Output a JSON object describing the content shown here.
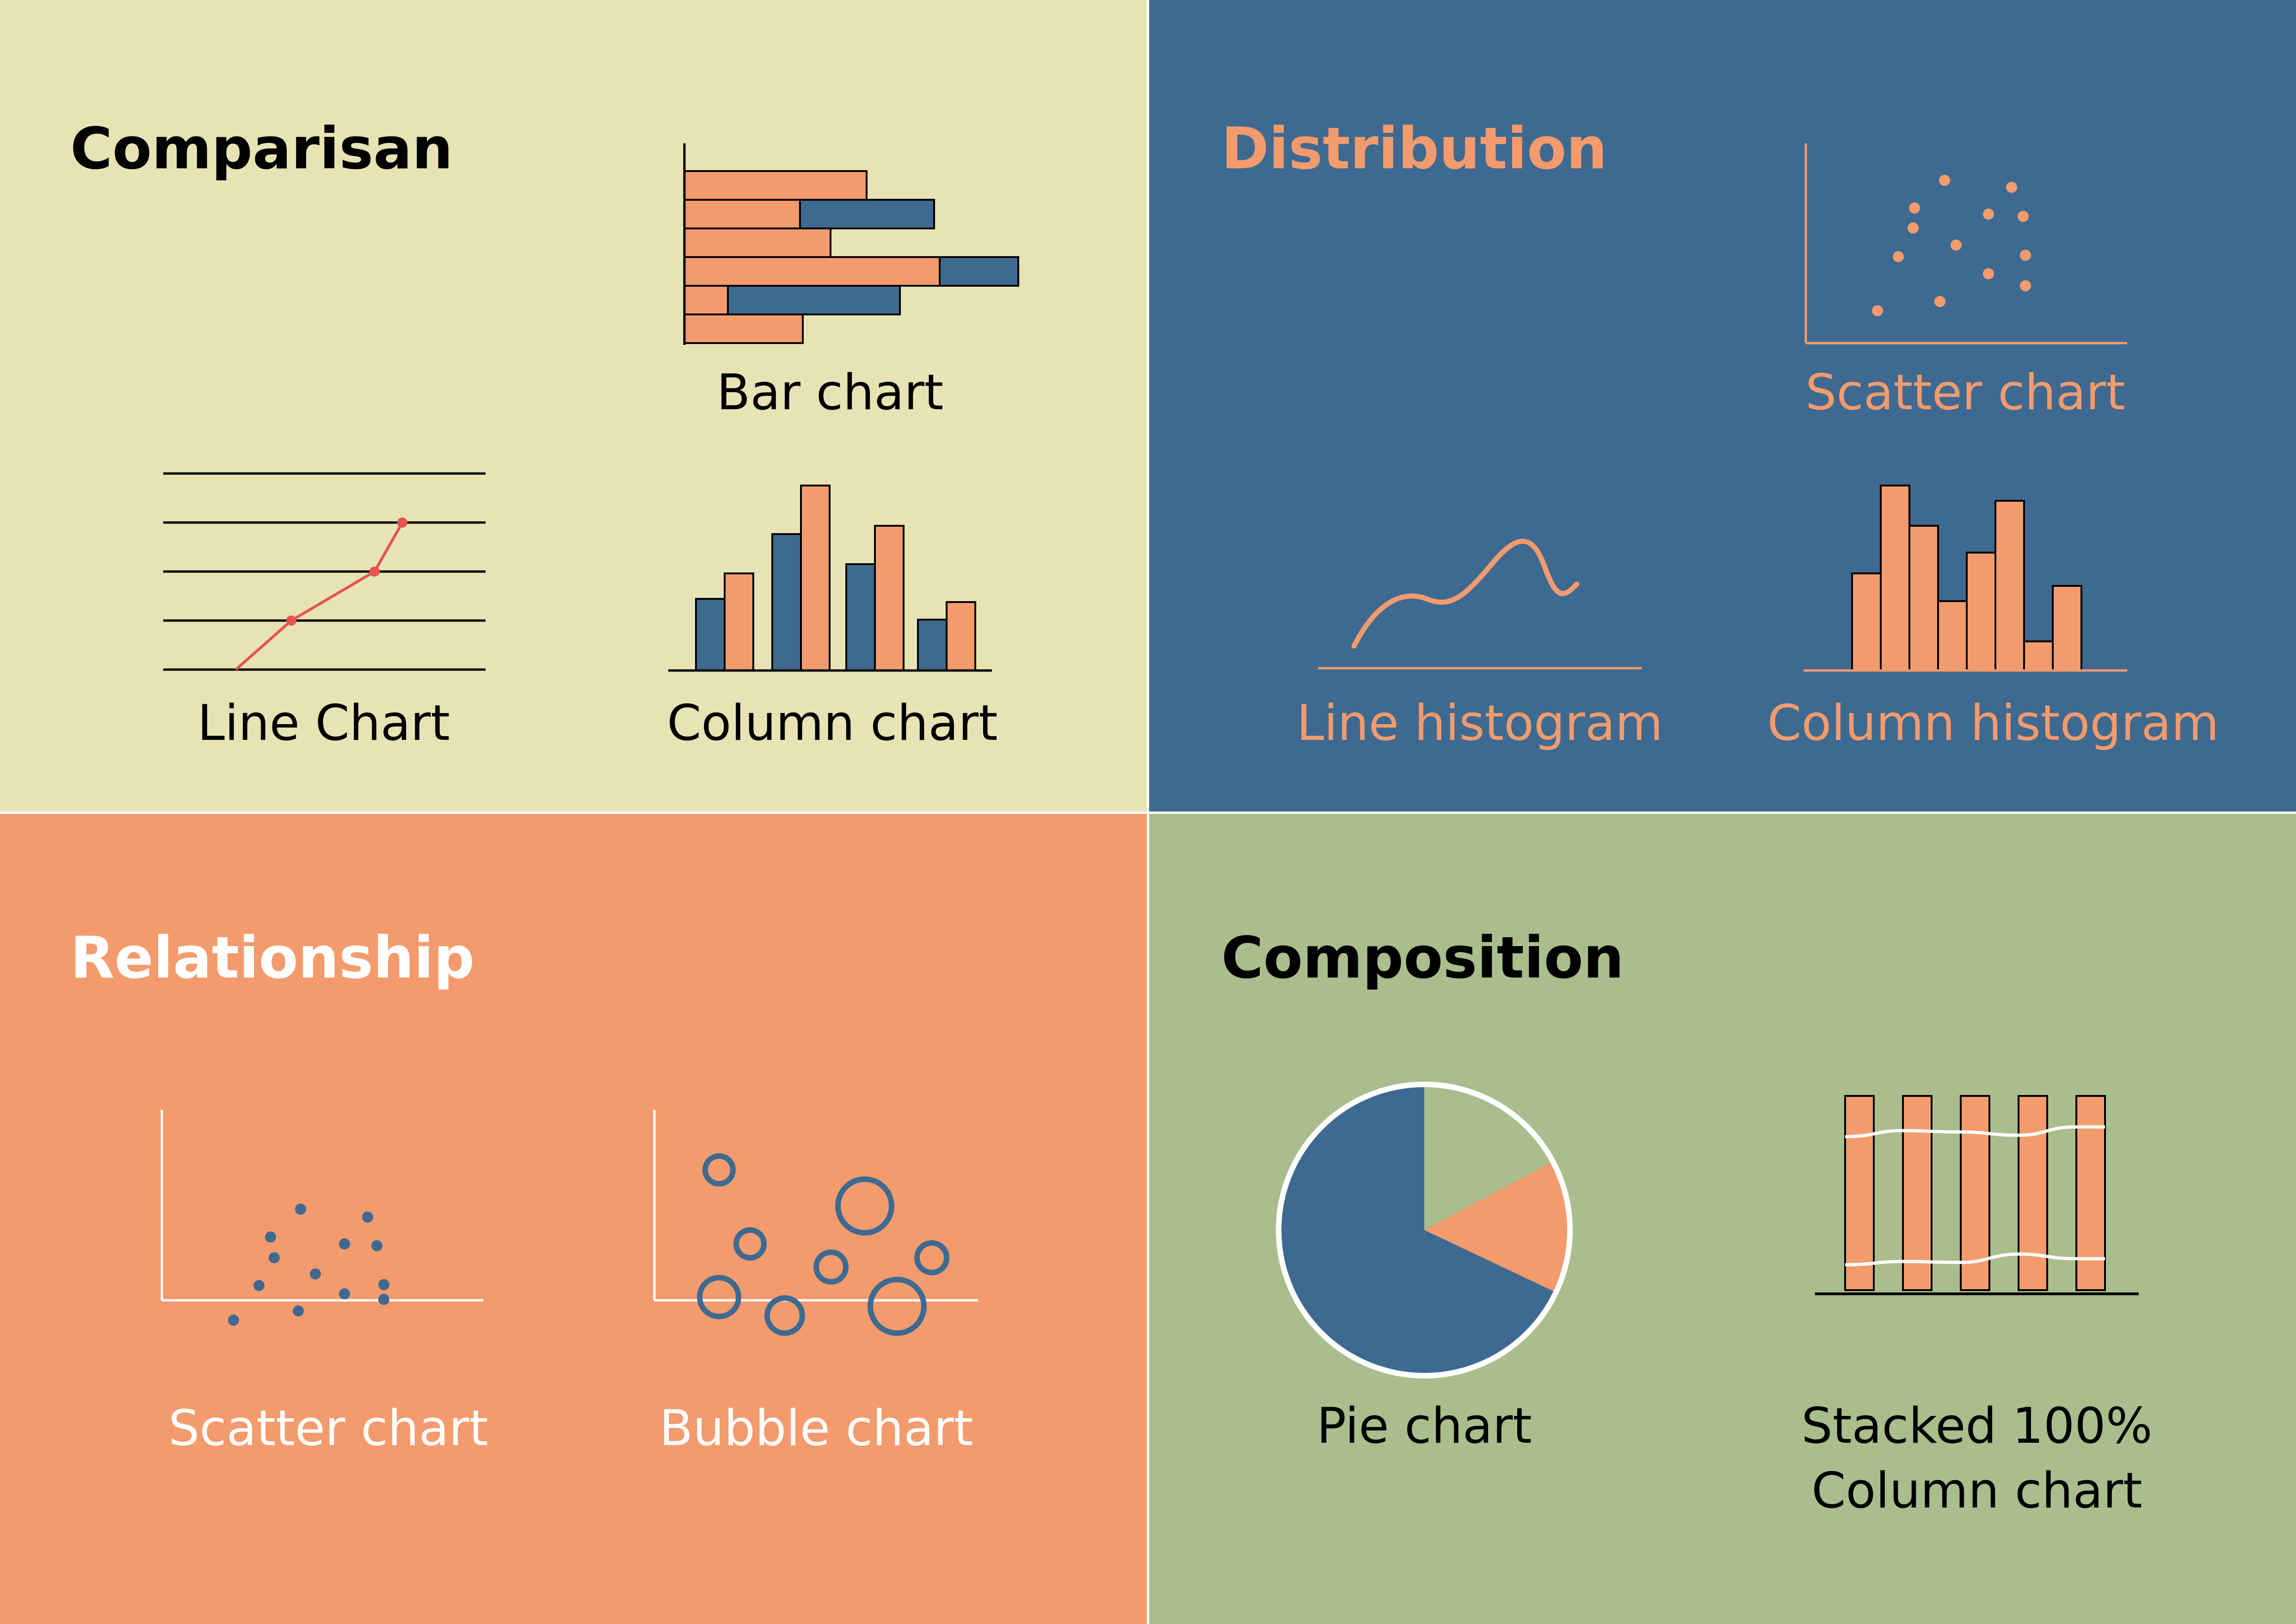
{
  "colors": {
    "cream": "#e7e3b4",
    "blue": "#3e6a91",
    "orange": "#f39b6d",
    "green": "#a9be8c",
    "black": "#000000",
    "white": "#ffffff",
    "red": "#e8524f"
  },
  "quadrants": {
    "comparison": {
      "heading": "Comparisan",
      "bar_chart": "Bar chart",
      "line_chart": "Line Chart",
      "column_chart": "Column chart"
    },
    "distribution": {
      "heading": "Distribution",
      "scatter_chart": "Scatter chart",
      "line_histogram": "Line histogram",
      "column_histogram": "Column histogram"
    },
    "relationship": {
      "heading": "Relationship",
      "scatter_chart": "Scatter chart",
      "bubble_chart": "Bubble chart"
    },
    "composition": {
      "heading": "Composition",
      "pie_chart": "Pie chart",
      "stacked_line1": "Stacked 100%",
      "stacked_line2": "Column chart"
    }
  }
}
